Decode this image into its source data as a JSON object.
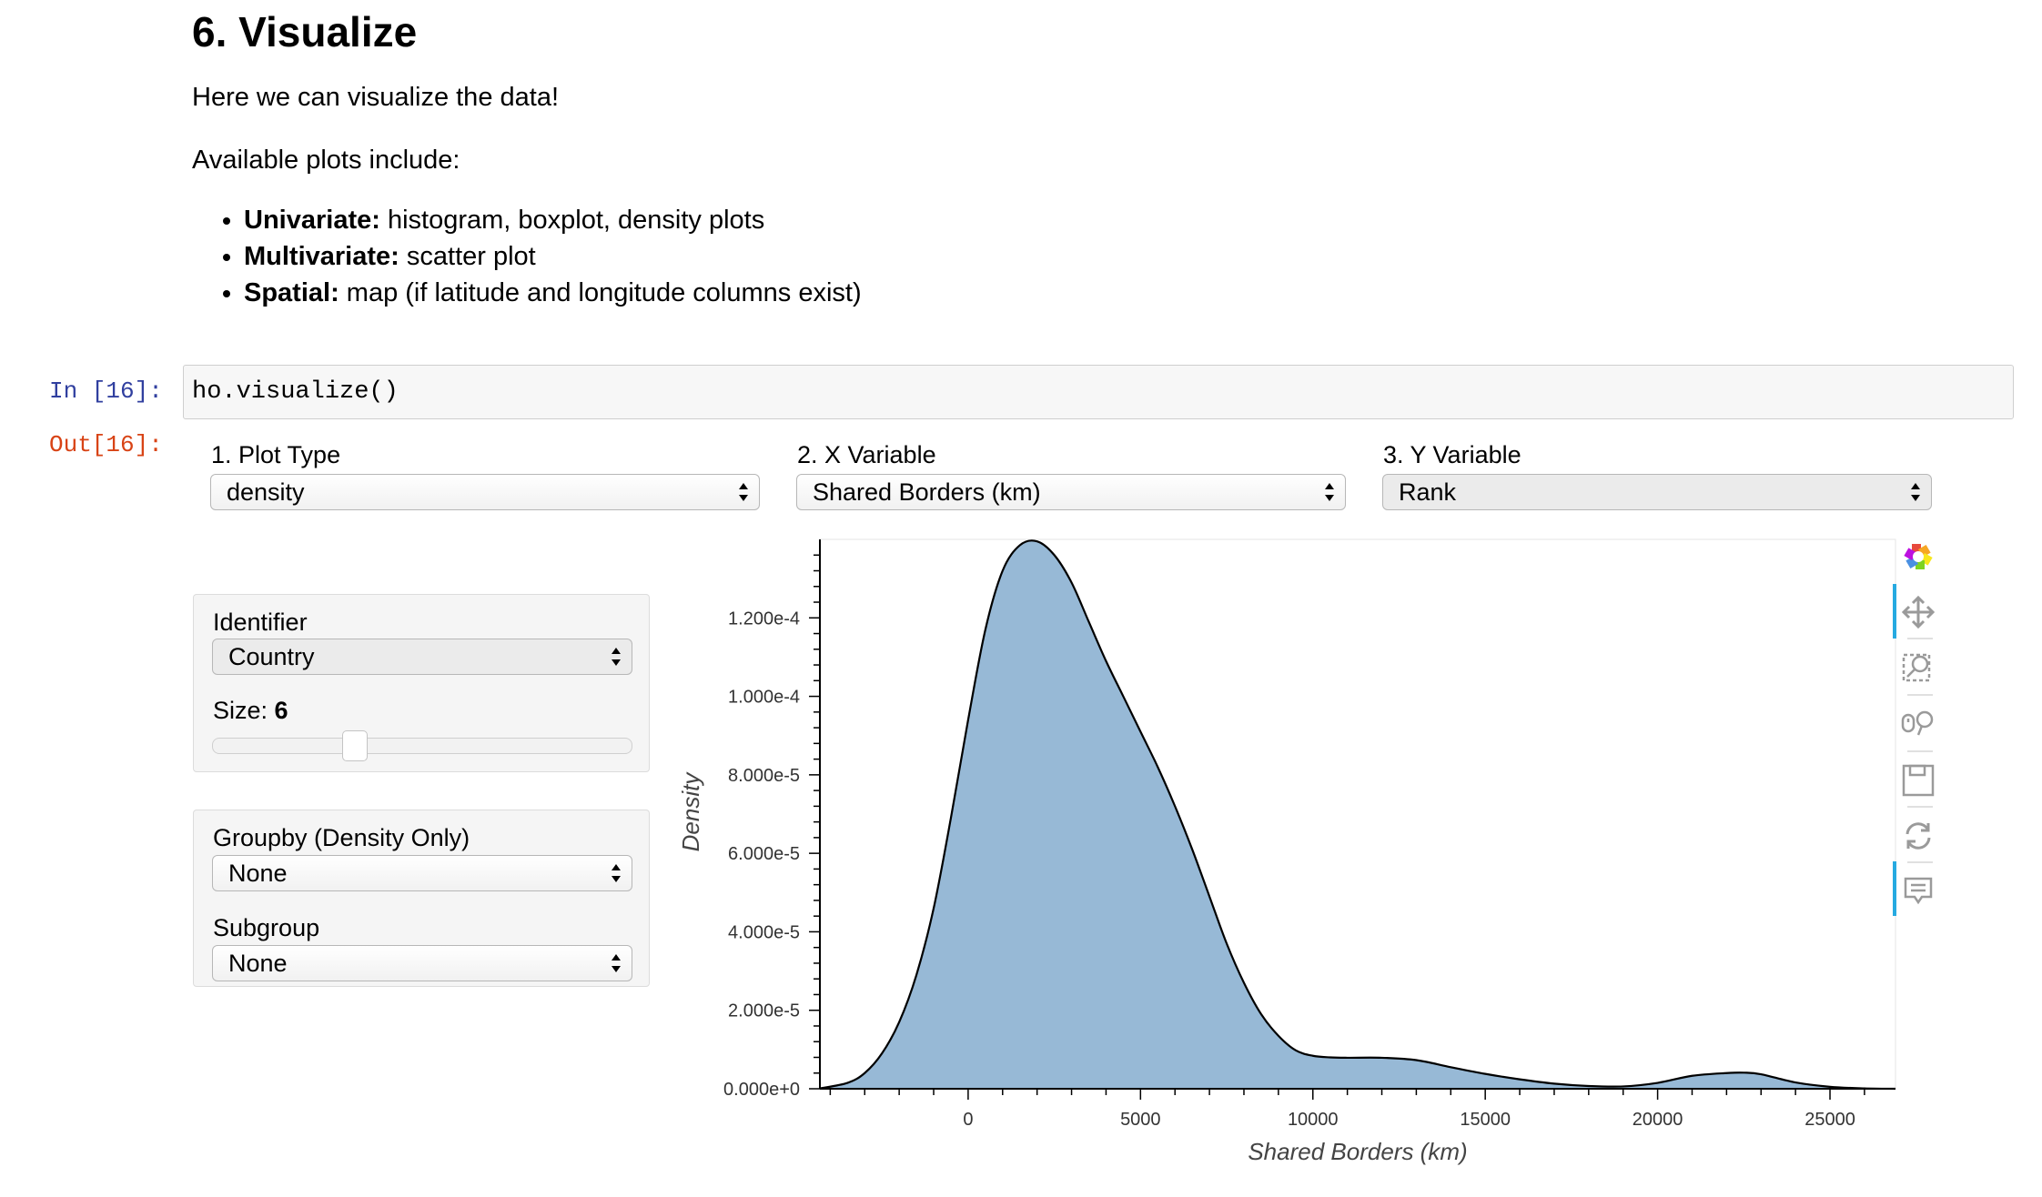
{
  "markdown": {
    "heading": "6. Visualize",
    "intro": "Here we can visualize the data!",
    "available": "Available plots include:",
    "bullets": [
      {
        "bold": "Univariate:",
        "text": " histogram, boxplot, density plots"
      },
      {
        "bold": "Multivariate:",
        "text": " scatter plot"
      },
      {
        "bold": "Spatial:",
        "text": " map (if latitude and longitude columns exist)"
      }
    ]
  },
  "cell": {
    "in_prompt": "In [16]:",
    "code": "ho.visualize()",
    "out_prompt": "Out[16]:"
  },
  "widgets": {
    "plot_type": {
      "label": "1. Plot Type",
      "value": "density"
    },
    "x_variable": {
      "label": "2. X Variable",
      "value": "Shared Borders (km)"
    },
    "y_variable": {
      "label": "3. Y Variable",
      "value": "Rank"
    },
    "identifier": {
      "label": "Identifier",
      "value": "Country"
    },
    "size": {
      "label": "Size: ",
      "value": "6",
      "fraction": 0.33
    },
    "groupby": {
      "label": "Groupby (Density Only)",
      "value": "None"
    },
    "subgroup": {
      "label": "Subgroup",
      "value": "None"
    }
  },
  "toolbar": {
    "tools": [
      "bokeh-logo-icon",
      "pan-icon",
      "box-zoom-icon",
      "wheel-zoom-icon",
      "save-icon",
      "reset-icon",
      "hover-icon"
    ]
  },
  "chart_data": {
    "type": "area",
    "xlabel": "Shared Borders (km)",
    "ylabel": "Density",
    "xlim": [
      -4300,
      26900
    ],
    "ylim": [
      0,
      0.00014
    ],
    "x_ticks": [
      0,
      5000,
      10000,
      15000,
      20000,
      25000
    ],
    "x_tick_labels": [
      "0",
      "5000",
      "10000",
      "15000",
      "20000",
      "25000"
    ],
    "y_ticks": [
      0,
      2e-05,
      4e-05,
      6e-05,
      8e-05,
      0.0001,
      0.00012
    ],
    "y_tick_labels": [
      "0.000e+0",
      "2.000e-5",
      "4.000e-5",
      "6.000e-5",
      "8.000e-5",
      "1.000e-4",
      "1.200e-4"
    ],
    "fill_color": "#97b9d6",
    "line_color": "#000000",
    "grid": false,
    "x": [
      -4300,
      -3500,
      -3000,
      -2500,
      -2000,
      -1500,
      -1000,
      -500,
      0,
      500,
      1000,
      1500,
      2000,
      2500,
      3000,
      3500,
      4000,
      4500,
      5000,
      5500,
      6000,
      6500,
      7000,
      7500,
      8000,
      8500,
      9000,
      9500,
      10000,
      10500,
      11000,
      12000,
      13000,
      14000,
      15000,
      16000,
      17000,
      18000,
      19000,
      20000,
      21000,
      22000,
      22500,
      23000,
      24000,
      25000,
      26000,
      26900
    ],
    "values": [
      1e-07,
      1.5e-06,
      4e-06,
      9e-06,
      1.7e-05,
      2.9e-05,
      4.6e-05,
      6.9e-05,
      9.4e-05,
      0.000117,
      0.000132,
      0.0001385,
      0.0001395,
      0.000136,
      0.000129,
      0.000119,
      0.000109,
      0.0001,
      9.1e-05,
      8.2e-05,
      7.2e-05,
      6.1e-05,
      4.9e-05,
      3.7e-05,
      2.7e-05,
      1.9e-05,
      1.35e-05,
      9.8e-06,
      8.4e-06,
      8e-06,
      7.9e-06,
      7.9e-06,
      7.3e-06,
      5.5e-06,
      3.8e-06,
      2.4e-06,
      1.3e-06,
      7e-07,
      6e-07,
      1.5e-06,
      3.3e-06,
      4e-06,
      4.1e-06,
      3.7e-06,
      1.6e-06,
      5e-07,
      1e-07,
      0
    ]
  }
}
